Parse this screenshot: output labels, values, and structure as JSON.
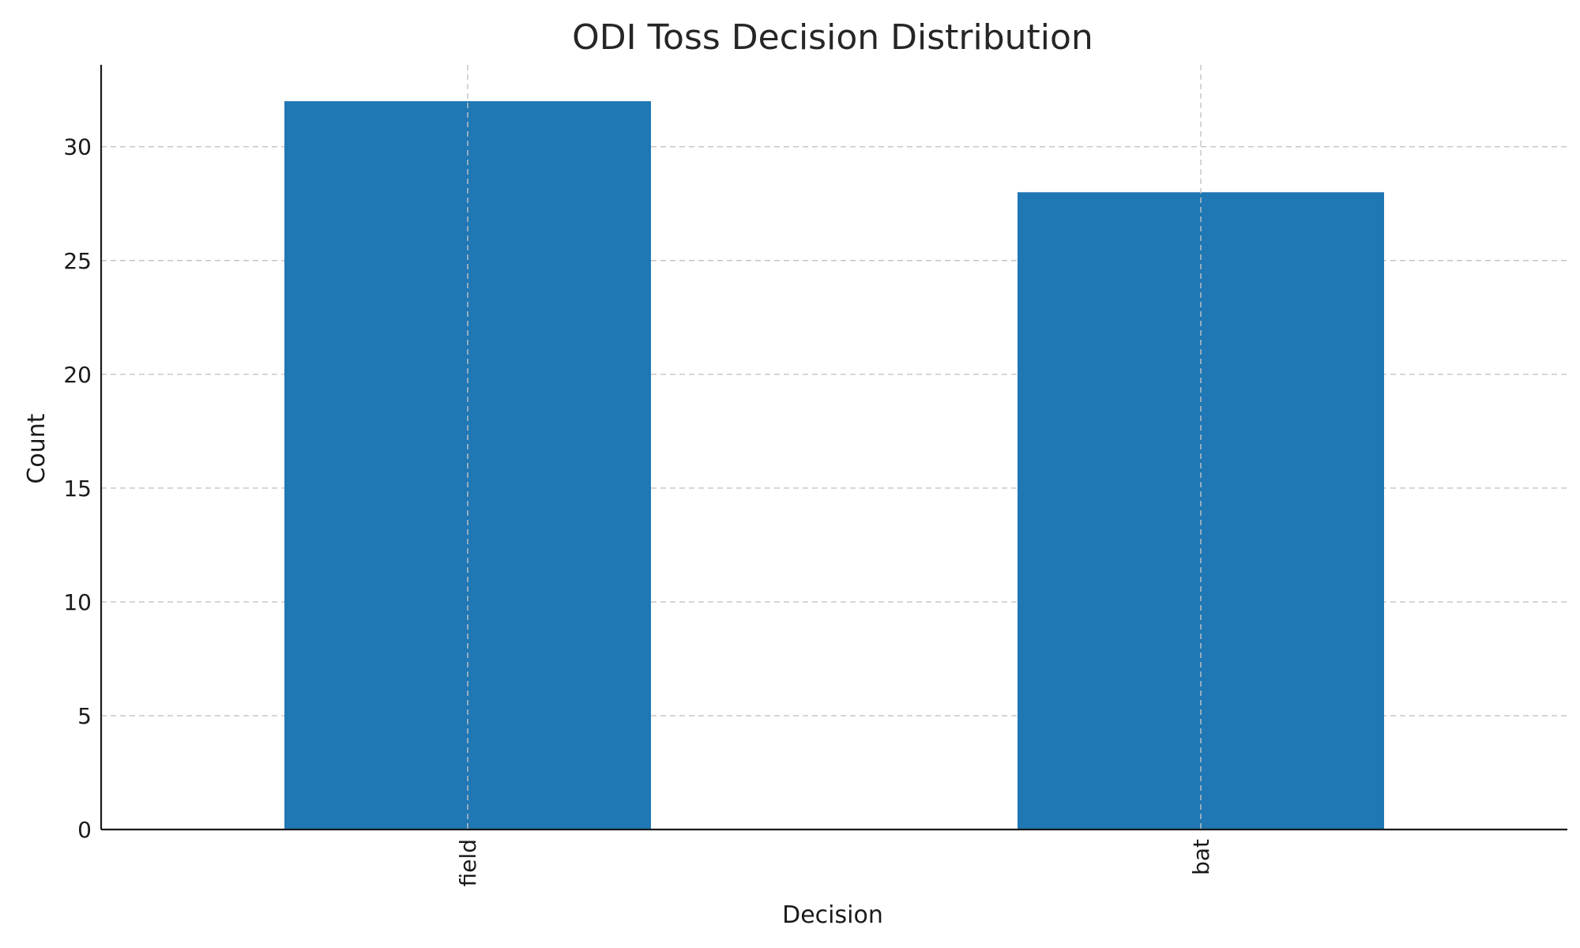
{
  "chart_data": {
    "type": "bar",
    "title": "ODI Toss Decision Distribution",
    "xlabel": "Decision",
    "ylabel": "Count",
    "categories": [
      "field",
      "bat"
    ],
    "values": [
      32,
      28
    ],
    "ylim": [
      0,
      33.6
    ],
    "yticks": [
      0,
      5,
      10,
      15,
      20,
      25,
      30
    ],
    "ytick_labels": [
      "0",
      "5",
      "10",
      "15",
      "20",
      "25",
      "30"
    ],
    "grid": true,
    "legend": null,
    "colors": {
      "bar": "#1f77b4"
    }
  }
}
